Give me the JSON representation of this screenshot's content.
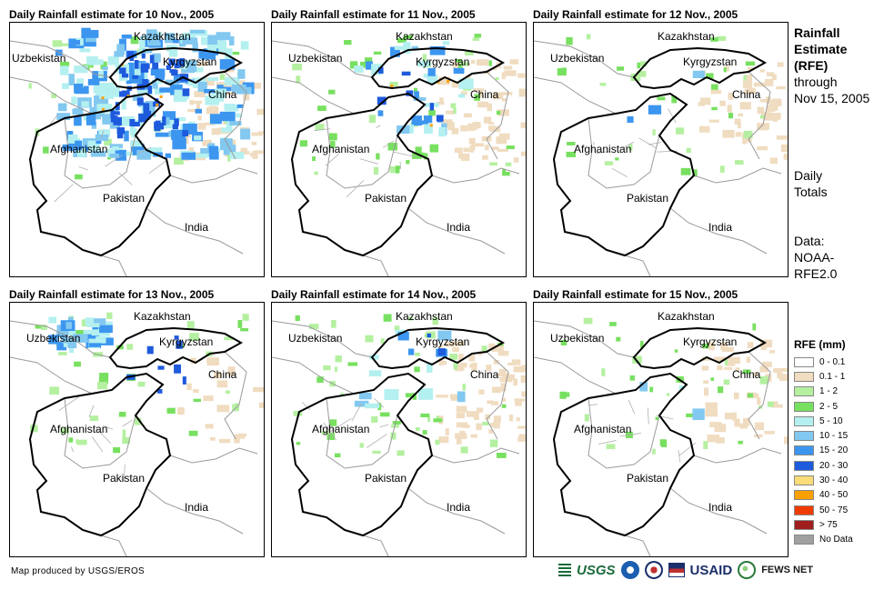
{
  "panels": [
    {
      "title": "Daily Rainfall estimate for 10 Nov., 2005",
      "intensity": "heavy"
    },
    {
      "title": "Daily Rainfall estimate for 11 Nov., 2005",
      "intensity": "moderate"
    },
    {
      "title": "Daily Rainfall estimate for 12 Nov., 2005",
      "intensity": "light"
    },
    {
      "title": "Daily Rainfall estimate for 13 Nov., 2005",
      "intensity": "light-blue"
    },
    {
      "title": "Daily Rainfall estimate for 14 Nov., 2005",
      "intensity": "moderate-light"
    },
    {
      "title": "Daily Rainfall estimate for 15 Nov., 2005",
      "intensity": "light"
    }
  ],
  "countries": {
    "kazakhstan": "Kazakhstan",
    "uzbekistan": "Uzbekistan",
    "kyrgyzstan": "Kyrgyzstan",
    "china": "China",
    "afghanistan": "Afghanistan",
    "pakistan": "Pakistan",
    "india": "India"
  },
  "side": {
    "title_bold": [
      "Rainfall",
      "Estimate",
      "(RFE)"
    ],
    "title_normal": [
      "through",
      "Nov 15, 2005"
    ],
    "period": [
      "Daily",
      "Totals"
    ],
    "data_source": [
      "Data:",
      "NOAA-",
      "RFE2.0"
    ]
  },
  "legend": {
    "title": "RFE (mm)",
    "items": [
      {
        "label": "0 - 0.1",
        "color": "#ffffff"
      },
      {
        "label": "0.1 - 1",
        "color": "#f0dcc0"
      },
      {
        "label": "1 - 2",
        "color": "#b4f0a0"
      },
      {
        "label": "2 - 5",
        "color": "#78e060"
      },
      {
        "label": "5 - 10",
        "color": "#b4f0f0"
      },
      {
        "label": "10 - 15",
        "color": "#82c8f0"
      },
      {
        "label": "15 - 20",
        "color": "#3c96f0"
      },
      {
        "label": "20 - 30",
        "color": "#1e5adc"
      },
      {
        "label": "30 - 40",
        "color": "#fadc78"
      },
      {
        "label": "40 - 50",
        "color": "#faa000"
      },
      {
        "label": "50 - 75",
        "color": "#f03c00"
      },
      {
        "label": "> 75",
        "color": "#a01e1e"
      },
      {
        "label": "No Data",
        "color": "#a0a0a0"
      }
    ]
  },
  "credit": "Map produced by USGS/EROS",
  "logos": {
    "usgs": "USGS",
    "usaid": "USAID",
    "fews": "FEWS NET"
  }
}
